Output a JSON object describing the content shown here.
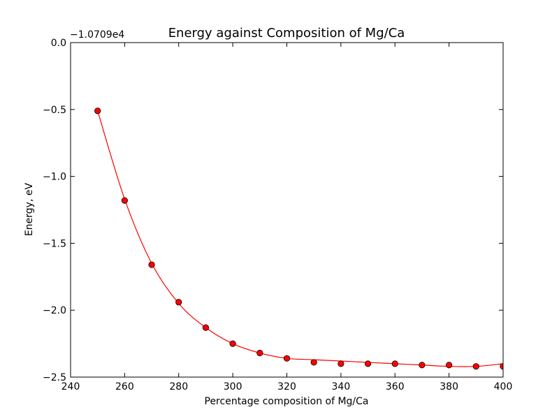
{
  "chart_data": {
    "type": "scatter",
    "title": "Energy against Composition of Mg/Ca",
    "xlabel": "Percentage composition of Mg/Ca",
    "ylabel": "Energy, eV",
    "y_offset_label": "−1.0709e4",
    "xlim": [
      240,
      400
    ],
    "ylim": [
      -2.5,
      0.0
    ],
    "x_ticks": [
      240,
      260,
      280,
      300,
      320,
      340,
      360,
      380,
      400
    ],
    "x_tick_labels": [
      "240",
      "260",
      "280",
      "300",
      "320",
      "340",
      "360",
      "380",
      "400"
    ],
    "y_ticks": [
      0.0,
      -0.5,
      -1.0,
      -1.5,
      -2.0,
      -2.5
    ],
    "y_tick_labels": [
      "0.0",
      "−0.5",
      "−1.0",
      "−1.5",
      "−2.0",
      "−2.5"
    ],
    "grid": false,
    "series": [
      {
        "marker_color": "#ff0000",
        "line_color": "#ff0000",
        "x": [
          250,
          260,
          270,
          280,
          290,
          300,
          310,
          320,
          330,
          340,
          350,
          360,
          370,
          380,
          390,
          400
        ],
        "y": [
          -0.51,
          -1.18,
          -1.66,
          -1.94,
          -2.13,
          -2.25,
          -2.32,
          -2.36,
          -2.39,
          -2.4,
          -2.4,
          -2.4,
          -2.41,
          -2.41,
          -2.42,
          -2.42
        ],
        "fit_y": [
          -0.51,
          -1.17,
          -1.65,
          -1.95,
          -2.13,
          -2.25,
          -2.32,
          -2.36,
          -2.37,
          -2.38,
          -2.39,
          -2.4,
          -2.41,
          -2.42,
          -2.42,
          -2.4
        ]
      }
    ]
  }
}
